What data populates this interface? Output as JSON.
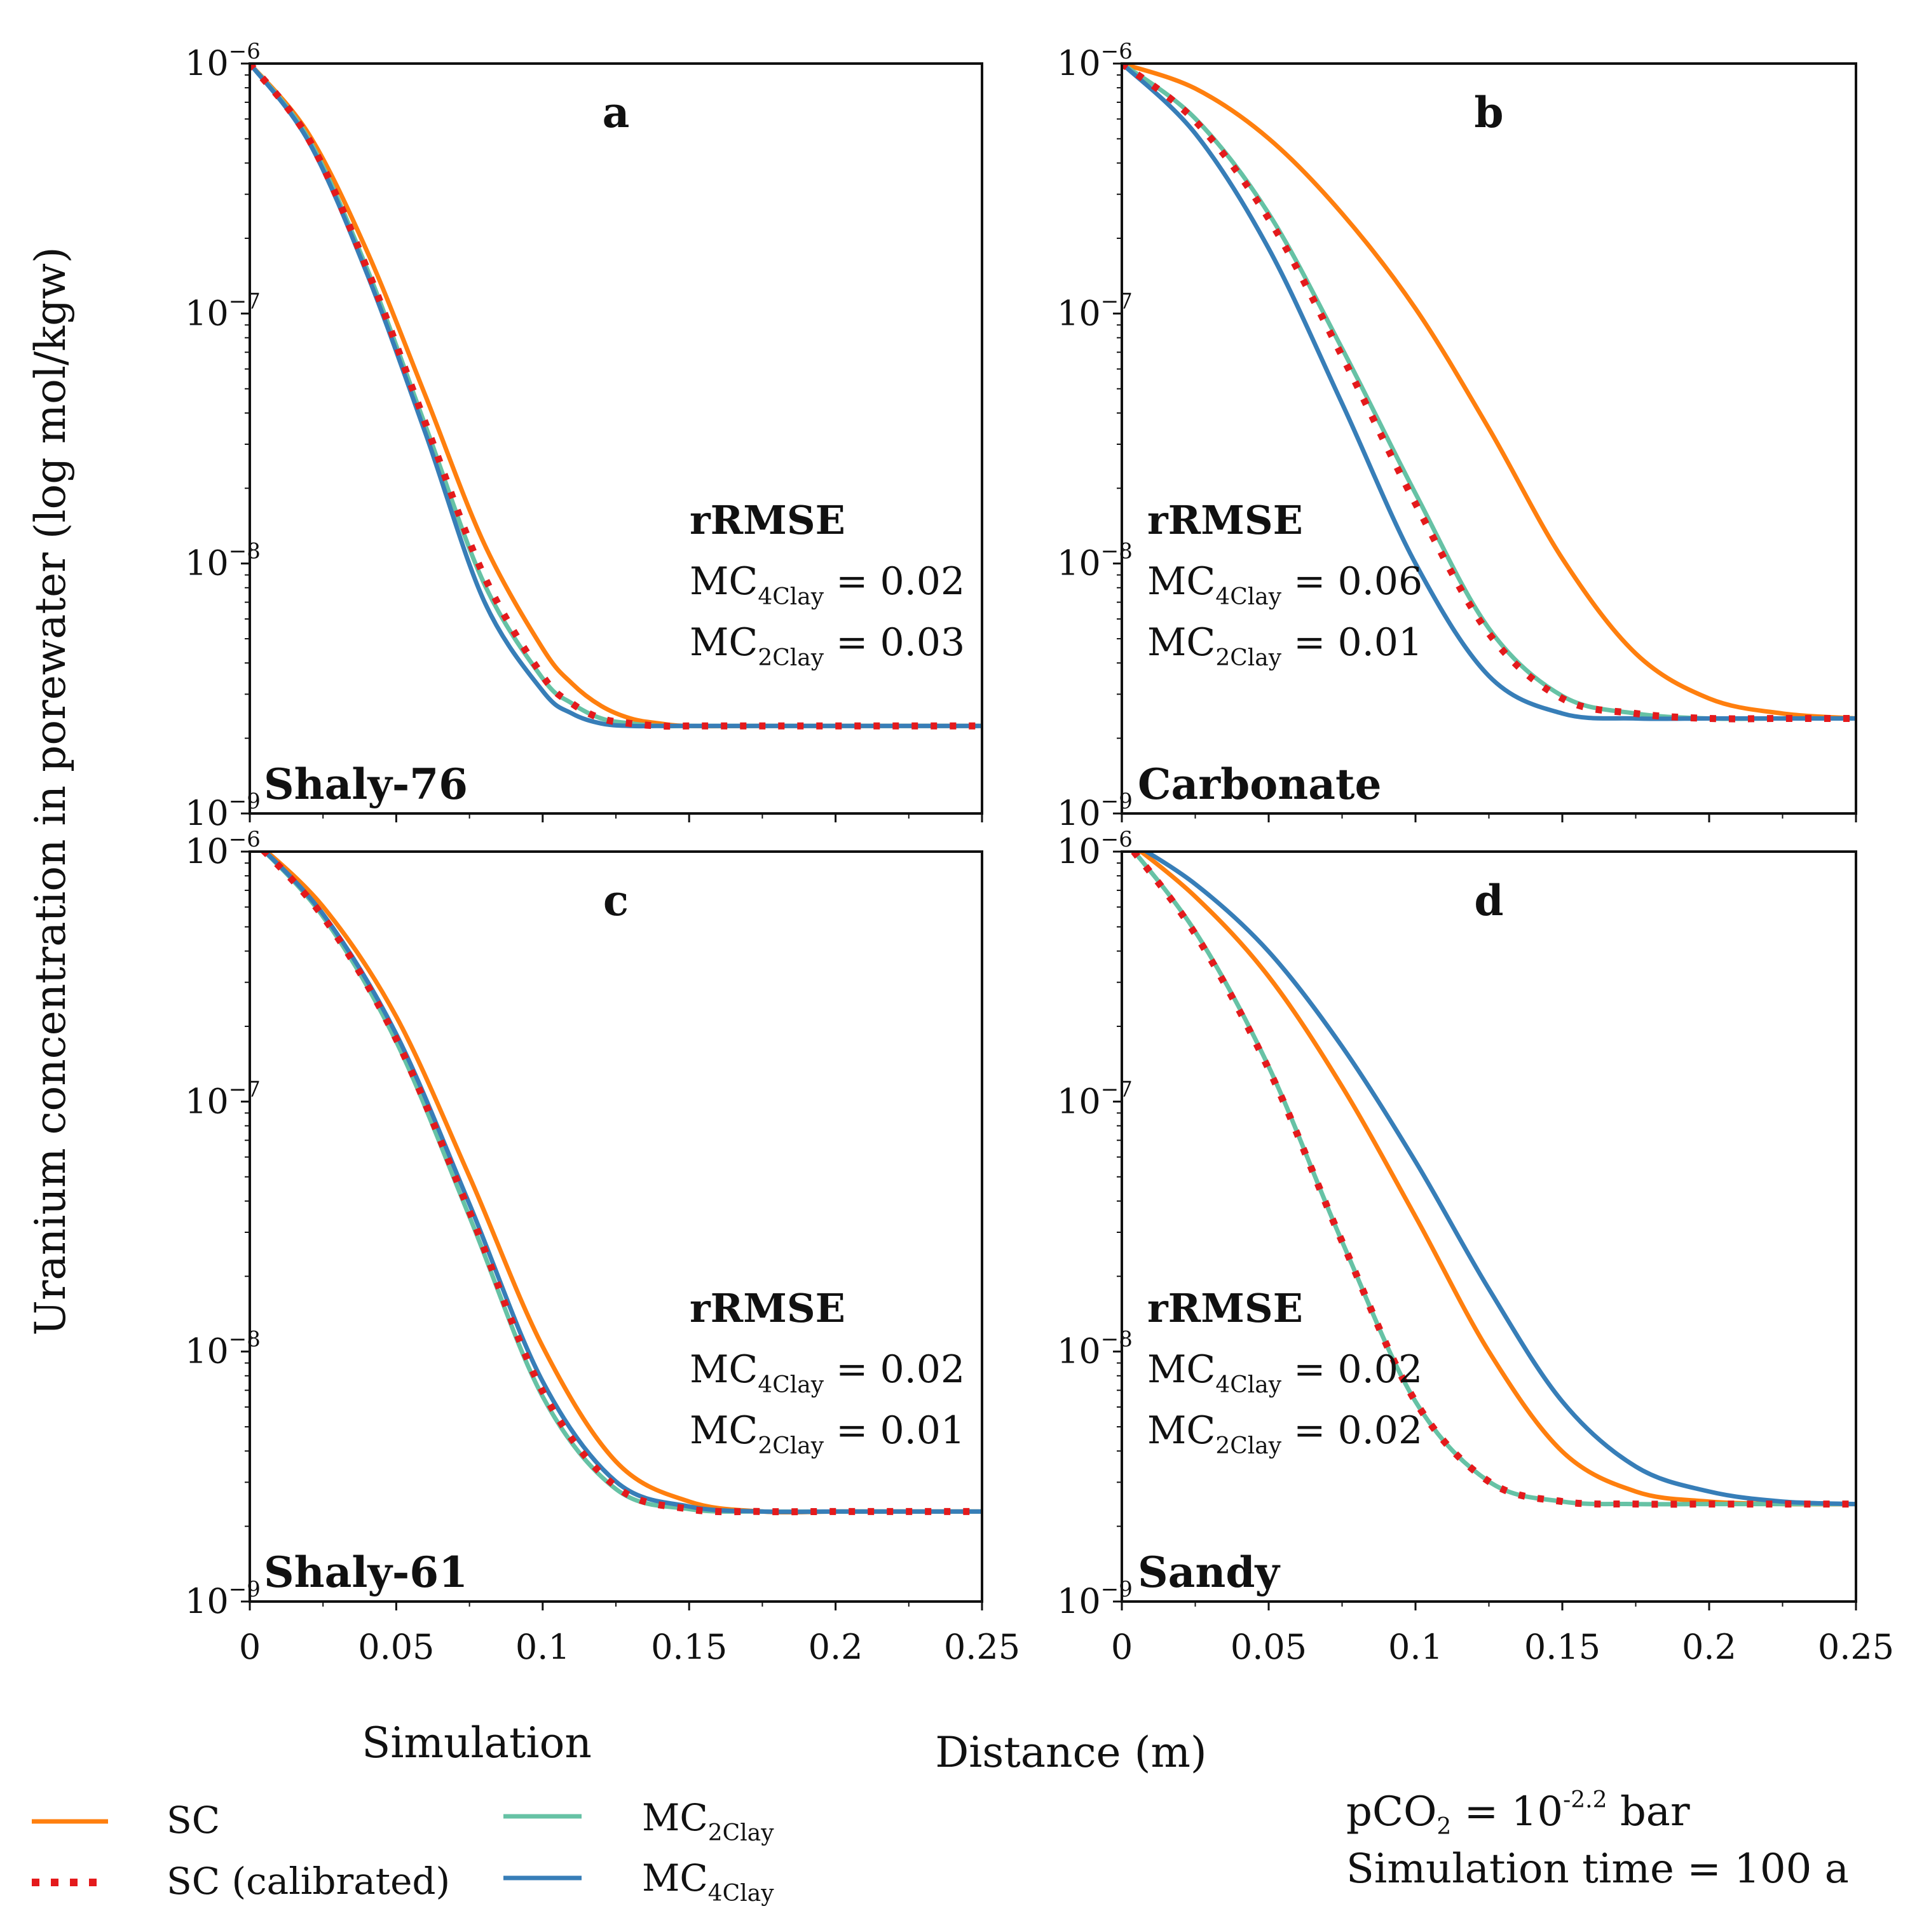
{
  "figure": {
    "ylabel": "Uranium concentration in porewater (log mol/kgw)",
    "xlabel": "Distance (m)",
    "legend_title": "Simulation",
    "legend": [
      {
        "key": "SC",
        "label": "SC",
        "color": "#ff7f0e",
        "style": "solid"
      },
      {
        "key": "SCcal",
        "label": "SC (calibrated)",
        "color": "#e41a1c",
        "style": "dotted"
      },
      {
        "key": "MC2",
        "label": "MC",
        "label_sub": "2Clay",
        "color": "#66c2a5",
        "style": "solid"
      },
      {
        "key": "MC4",
        "label": "MC",
        "label_sub": "4Clay",
        "color": "#377eb8",
        "style": "solid"
      }
    ],
    "conditions": {
      "pco2_prefix": "pCO",
      "pco2_sub": "2",
      "pco2_eq": " = 10",
      "pco2_exp": "-2.2",
      "pco2_unit": " bar",
      "time": "Simulation time = 100 a"
    }
  },
  "chart_data": [
    {
      "type": "line",
      "panel": "a",
      "name": "Shaly-76",
      "xlim": [
        0,
        0.25
      ],
      "ylim_log10": [
        -9,
        -6
      ],
      "xticks": [
        "0",
        "0.05",
        "0.1",
        "0.15",
        "0.2",
        "0.25"
      ],
      "ytick_base": "10",
      "yticks_exp": [
        "−6",
        "−7",
        "−8",
        "−9"
      ],
      "rrmse_title": "rRMSE",
      "rrmse": [
        {
          "label": "MC",
          "sub": "4Clay",
          "value": "= 0.02"
        },
        {
          "label": "MC",
          "sub": "2Clay",
          "value": "= 0.03"
        }
      ],
      "x": [
        0,
        0.02,
        0.04,
        0.06,
        0.08,
        0.1,
        0.11,
        0.12,
        0.13,
        0.14,
        0.15,
        0.175,
        0.2,
        0.225,
        0.25
      ],
      "series": [
        {
          "key": "SC",
          "log10_y": [
            -6.0,
            -6.28,
            -6.75,
            -7.33,
            -7.92,
            -8.34,
            -8.48,
            -8.57,
            -8.62,
            -8.64,
            -8.65,
            -8.65,
            -8.65,
            -8.65,
            -8.65
          ]
        },
        {
          "key": "MC2",
          "log10_y": [
            -6.0,
            -6.3,
            -6.82,
            -7.45,
            -8.08,
            -8.46,
            -8.56,
            -8.62,
            -8.64,
            -8.65,
            -8.65,
            -8.65,
            -8.65,
            -8.65,
            -8.65
          ]
        },
        {
          "key": "MC4",
          "log10_y": [
            -6.0,
            -6.31,
            -6.84,
            -7.48,
            -8.15,
            -8.51,
            -8.6,
            -8.64,
            -8.65,
            -8.65,
            -8.65,
            -8.65,
            -8.65,
            -8.65,
            -8.65
          ]
        },
        {
          "key": "SCcal",
          "log10_y": [
            -6.0,
            -6.3,
            -6.82,
            -7.44,
            -8.05,
            -8.45,
            -8.56,
            -8.62,
            -8.64,
            -8.65,
            -8.65,
            -8.65,
            -8.65,
            -8.65,
            -8.65
          ]
        }
      ]
    },
    {
      "type": "line",
      "panel": "b",
      "name": "Carbonate",
      "xlim": [
        0,
        0.25
      ],
      "ylim_log10": [
        -9,
        -6
      ],
      "xticks": [
        "0",
        "0.05",
        "0.1",
        "0.15",
        "0.2",
        "0.25"
      ],
      "ytick_base": "10",
      "yticks_exp": [
        "−6",
        "−7",
        "−8",
        "−9"
      ],
      "rrmse_title": "rRMSE",
      "rrmse": [
        {
          "label": "MC",
          "sub": "4Clay",
          "value": "= 0.06"
        },
        {
          "label": "MC",
          "sub": "2Clay",
          "value": "= 0.01"
        }
      ],
      "x": [
        0,
        0.025,
        0.05,
        0.075,
        0.1,
        0.125,
        0.15,
        0.175,
        0.2,
        0.225,
        0.25
      ],
      "series": [
        {
          "key": "SC",
          "log10_y": [
            -6.0,
            -6.1,
            -6.3,
            -6.6,
            -6.98,
            -7.46,
            -7.98,
            -8.36,
            -8.54,
            -8.6,
            -8.62
          ]
        },
        {
          "key": "MC2",
          "log10_y": [
            -6.0,
            -6.22,
            -6.6,
            -7.14,
            -7.72,
            -8.26,
            -8.53,
            -8.6,
            -8.62,
            -8.62,
            -8.62
          ]
        },
        {
          "key": "MC4",
          "log10_y": [
            -6.0,
            -6.28,
            -6.74,
            -7.36,
            -8.0,
            -8.45,
            -8.6,
            -8.62,
            -8.62,
            -8.62,
            -8.62
          ]
        },
        {
          "key": "SCcal",
          "log10_y": [
            -6.0,
            -6.23,
            -6.62,
            -7.17,
            -7.76,
            -8.28,
            -8.54,
            -8.6,
            -8.62,
            -8.62,
            -8.62
          ]
        }
      ]
    },
    {
      "type": "line",
      "panel": "c",
      "name": "Shaly-61",
      "xlim": [
        0,
        0.25
      ],
      "ylim_log10": [
        -9,
        -6
      ],
      "xticks": [
        "0",
        "0.05",
        "0.1",
        "0.15",
        "0.2",
        "0.25"
      ],
      "ytick_base": "10",
      "yticks_exp": [
        "−6",
        "−7",
        "−8",
        "−9"
      ],
      "rrmse_title": "rRMSE",
      "rrmse": [
        {
          "label": "MC",
          "sub": "4Clay",
          "value": "= 0.02"
        },
        {
          "label": "MC",
          "sub": "2Clay",
          "value": "= 0.01"
        }
      ],
      "x": [
        0,
        0.025,
        0.05,
        0.075,
        0.1,
        0.125,
        0.15,
        0.175,
        0.2,
        0.225,
        0.25
      ],
      "series": [
        {
          "key": "SC",
          "log10_y": [
            -5.94,
            -6.22,
            -6.66,
            -7.3,
            -7.98,
            -8.44,
            -8.6,
            -8.64,
            -8.64,
            -8.64,
            -8.64
          ]
        },
        {
          "key": "MC2",
          "log10_y": [
            -5.94,
            -6.26,
            -6.76,
            -7.46,
            -8.18,
            -8.55,
            -8.63,
            -8.64,
            -8.64,
            -8.64,
            -8.64
          ]
        },
        {
          "key": "MC4",
          "log10_y": [
            -5.94,
            -6.25,
            -6.73,
            -7.41,
            -8.12,
            -8.52,
            -8.62,
            -8.64,
            -8.64,
            -8.64,
            -8.64
          ]
        },
        {
          "key": "SCcal",
          "log10_y": [
            -5.94,
            -6.26,
            -6.75,
            -7.44,
            -8.16,
            -8.54,
            -8.63,
            -8.64,
            -8.64,
            -8.64,
            -8.64
          ]
        }
      ]
    },
    {
      "type": "line",
      "panel": "d",
      "name": "Sandy",
      "xlim": [
        0,
        0.25
      ],
      "ylim_log10": [
        -9,
        -6
      ],
      "xticks": [
        "0",
        "0.05",
        "0.1",
        "0.15",
        "0.2",
        "0.25"
      ],
      "ytick_base": "10",
      "yticks_exp": [
        "−6",
        "−7",
        "−8",
        "−9"
      ],
      "rrmse_title": "rRMSE",
      "rrmse": [
        {
          "label": "MC",
          "sub": "4Clay",
          "value": "= 0.02"
        },
        {
          "label": "MC",
          "sub": "2Clay",
          "value": "= 0.02"
        }
      ],
      "x": [
        0,
        0.025,
        0.05,
        0.075,
        0.1,
        0.125,
        0.15,
        0.175,
        0.2,
        0.225,
        0.25
      ],
      "series": [
        {
          "key": "SC",
          "log10_y": [
            -5.94,
            -6.18,
            -6.5,
            -6.94,
            -7.46,
            -8.0,
            -8.4,
            -8.56,
            -8.6,
            -8.61,
            -8.61
          ]
        },
        {
          "key": "MC2",
          "log10_y": [
            -5.94,
            -6.32,
            -6.86,
            -7.56,
            -8.2,
            -8.52,
            -8.6,
            -8.61,
            -8.61,
            -8.61,
            -8.61
          ]
        },
        {
          "key": "MC4",
          "log10_y": [
            -5.94,
            -6.13,
            -6.4,
            -6.78,
            -7.24,
            -7.75,
            -8.2,
            -8.46,
            -8.56,
            -8.6,
            -8.61
          ]
        },
        {
          "key": "SCcal",
          "log10_y": [
            -5.94,
            -6.33,
            -6.87,
            -7.56,
            -8.2,
            -8.52,
            -8.6,
            -8.61,
            -8.61,
            -8.61,
            -8.61
          ]
        }
      ]
    }
  ]
}
